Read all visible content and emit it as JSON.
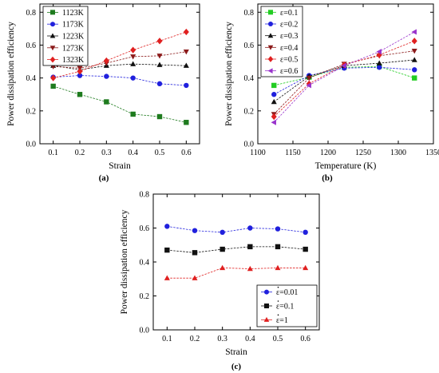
{
  "chart_data": [
    {
      "id": "a",
      "type": "line",
      "caption": "(a)",
      "xlabel": "Strain",
      "ylabel": "Power dissipation efficiency",
      "xlim": [
        0.05,
        0.65
      ],
      "ylim": [
        0.0,
        0.85
      ],
      "xticks": [
        0.1,
        0.2,
        0.3,
        0.4,
        0.5,
        0.6
      ],
      "xtick_labels": [
        "0.1",
        "0.2",
        "0.3",
        "0.4",
        "0.5",
        "0.6"
      ],
      "yticks": [
        0.0,
        0.2,
        0.4,
        0.6,
        0.8
      ],
      "ytick_labels": [
        "0.0",
        "0.2",
        "0.4",
        "0.6",
        "0.8"
      ],
      "legend_position": "top-left",
      "x": [
        0.1,
        0.2,
        0.3,
        0.4,
        0.5,
        0.6
      ],
      "series": [
        {
          "name": "1123K",
          "marker": "square",
          "color": "#1e7b1e",
          "values": [
            0.35,
            0.3,
            0.255,
            0.18,
            0.165,
            0.13
          ]
        },
        {
          "name": "1173K",
          "marker": "circle",
          "color": "#2020dd",
          "values": [
            0.405,
            0.415,
            0.41,
            0.4,
            0.365,
            0.355
          ]
        },
        {
          "name": "1223K",
          "marker": "triangle-up",
          "color": "#111111",
          "values": [
            0.475,
            0.45,
            0.475,
            0.485,
            0.48,
            0.475
          ]
        },
        {
          "name": "1273K",
          "marker": "triangle-down",
          "color": "#8b1a1a",
          "values": [
            0.47,
            0.46,
            0.49,
            0.53,
            0.535,
            0.56
          ]
        },
        {
          "name": "1323K",
          "marker": "diamond",
          "color": "#e02020",
          "values": [
            0.4,
            0.44,
            0.505,
            0.57,
            0.625,
            0.68
          ]
        }
      ]
    },
    {
      "id": "b",
      "type": "line",
      "caption": "(b)",
      "xlabel": "Temperature (K)",
      "ylabel": "Power dissipation efficiency",
      "xlim": [
        1100,
        1350
      ],
      "ylim": [
        0.0,
        0.85
      ],
      "xticks": [
        1100,
        1150,
        1200,
        1250,
        1300,
        1350
      ],
      "xtick_labels": [
        "1100",
        "1150",
        "1200",
        "1250",
        "1300",
        "1350"
      ],
      "yticks": [
        0.0,
        0.2,
        0.4,
        0.6,
        0.8
      ],
      "ytick_labels": [
        "0.0",
        "0.2",
        "0.4",
        "0.6",
        "0.8"
      ],
      "legend_position": "top-left",
      "x": [
        1123,
        1173,
        1223,
        1273,
        1323
      ],
      "series": [
        {
          "name": "ε=0.1",
          "marker": "square",
          "color": "#22cc22",
          "values": [
            0.355,
            0.405,
            0.465,
            0.47,
            0.4
          ]
        },
        {
          "name": "ε=0.2",
          "marker": "circle",
          "color": "#2020dd",
          "values": [
            0.3,
            0.415,
            0.46,
            0.465,
            0.45
          ]
        },
        {
          "name": "ε=0.3",
          "marker": "triangle-up",
          "color": "#111111",
          "values": [
            0.255,
            0.41,
            0.475,
            0.49,
            0.51
          ]
        },
        {
          "name": "ε=0.4",
          "marker": "triangle-down",
          "color": "#8b1a1a",
          "values": [
            0.18,
            0.4,
            0.485,
            0.535,
            0.565
          ]
        },
        {
          "name": "ε=0.5",
          "marker": "diamond",
          "color": "#e02020",
          "values": [
            0.165,
            0.365,
            0.48,
            0.54,
            0.625
          ]
        },
        {
          "name": "ε=0.6",
          "marker": "triangle-left",
          "color": "#9933cc",
          "values": [
            0.13,
            0.355,
            0.475,
            0.56,
            0.68
          ]
        }
      ]
    },
    {
      "id": "c",
      "type": "line",
      "caption": "(c)",
      "xlabel": "Strain",
      "ylabel": "Power dissipation efficiency",
      "xlim": [
        0.05,
        0.65
      ],
      "ylim": [
        0.0,
        0.8
      ],
      "xticks": [
        0.1,
        0.2,
        0.3,
        0.4,
        0.5,
        0.6
      ],
      "xtick_labels": [
        "0.1",
        "0.2",
        "0.3",
        "0.4",
        "0.5",
        "0.6"
      ],
      "yticks": [
        0.0,
        0.2,
        0.4,
        0.6,
        0.8
      ],
      "ytick_labels": [
        "0.0",
        "0.2",
        "0.4",
        "0.6",
        "0.8"
      ],
      "legend_position": "bottom-right",
      "x": [
        0.1,
        0.2,
        0.3,
        0.4,
        0.5,
        0.6
      ],
      "series": [
        {
          "name": "ε=0.01",
          "marker": "circle",
          "color": "#2020dd",
          "values": [
            0.61,
            0.585,
            0.575,
            0.6,
            0.595,
            0.575
          ]
        },
        {
          "name": "ε=0.1",
          "marker": "square",
          "color": "#111111",
          "values": [
            0.47,
            0.455,
            0.475,
            0.49,
            0.49,
            0.475
          ]
        },
        {
          "name": "ε=1",
          "marker": "triangle-up",
          "color": "#e02020",
          "values": [
            0.305,
            0.305,
            0.365,
            0.36,
            0.365,
            0.365
          ]
        }
      ]
    }
  ]
}
